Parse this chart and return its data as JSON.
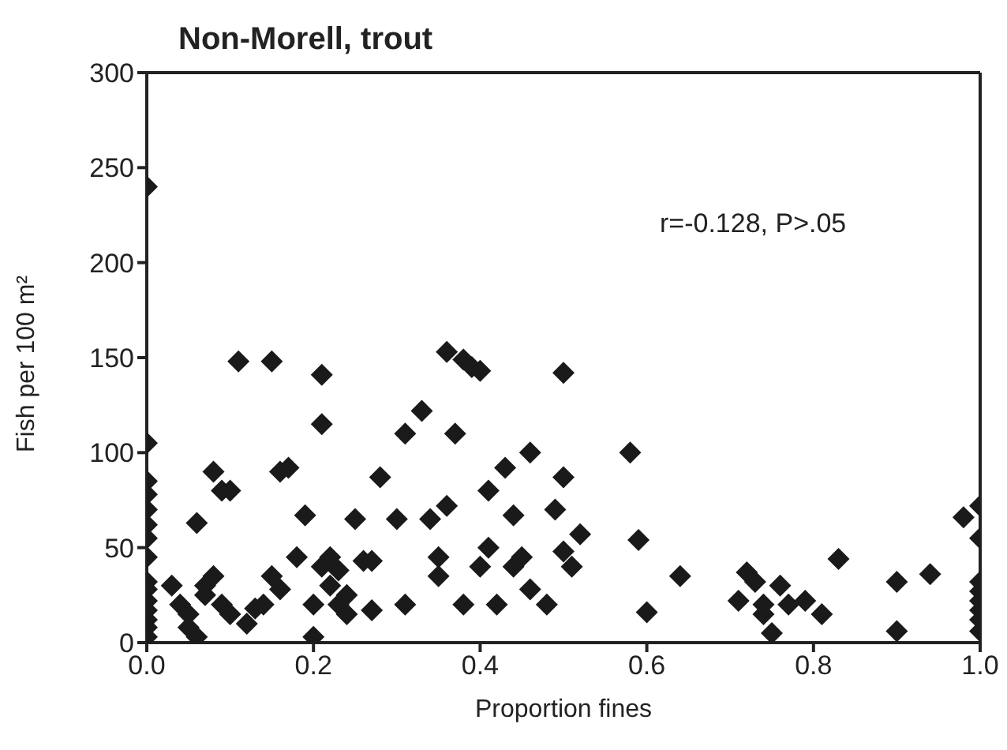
{
  "chart_data": {
    "type": "scatter",
    "title": "Non-Morell, trout",
    "xlabel": "Proportion fines",
    "ylabel": "Fish per 100 m²",
    "annotations": [
      "r=-0.128, P>.05"
    ],
    "xlim": [
      0,
      1
    ],
    "ylim": [
      0,
      300
    ],
    "xticks": [
      {
        "value": 0,
        "label": "0.0"
      },
      0.2,
      0.4,
      0.6,
      0.8,
      {
        "value": 1,
        "label": "1.0"
      }
    ],
    "yticks": [
      0,
      50,
      100,
      150,
      200,
      250,
      300
    ],
    "marker": "diamond",
    "series": [
      {
        "color": "#1a1a1a",
        "x": [
          0,
          0,
          0,
          0,
          0,
          0,
          0,
          0,
          0,
          0,
          0,
          0,
          0,
          0,
          0,
          0.03,
          0.04,
          0.05,
          0.05,
          0.06,
          0.07,
          0.06,
          0.07,
          0.08,
          0.09,
          0.08,
          0.09,
          0.1,
          0.1,
          0.11,
          0.12,
          0.13,
          0.14,
          0.15,
          0.15,
          0.16,
          0.17,
          0.16,
          0.18,
          0.19,
          0.2,
          0.2,
          0.21,
          0.21,
          0.21,
          0.22,
          0.22,
          0.23,
          0.23,
          0.24,
          0.24,
          0.25,
          0.26,
          0.27,
          0.27,
          0.28,
          0.3,
          0.31,
          0.31,
          0.33,
          0.34,
          0.35,
          0.35,
          0.36,
          0.36,
          0.37,
          0.38,
          0.38,
          0.39,
          0.4,
          0.4,
          0.41,
          0.41,
          0.42,
          0.43,
          0.44,
          0.44,
          0.45,
          0.46,
          0.46,
          0.48,
          0.49,
          0.5,
          0.5,
          0.5,
          0.51,
          0.52,
          0.58,
          0.59,
          0.6,
          0.64,
          0.71,
          0.72,
          0.73,
          0.74,
          0.74,
          0.76,
          0.75,
          0.77,
          0.79,
          0.81,
          0.83,
          0.9,
          0.9,
          0.94,
          0.98,
          1,
          1,
          1,
          1,
          1,
          1,
          1,
          1
        ],
        "values": [
          240,
          105,
          85,
          78,
          70,
          62,
          55,
          45,
          32,
          28,
          22,
          17,
          12,
          8,
          3,
          30,
          20,
          15,
          8,
          3,
          25,
          63,
          30,
          90,
          80,
          35,
          20,
          80,
          15,
          148,
          10,
          18,
          20,
          148,
          35,
          90,
          92,
          28,
          45,
          67,
          3,
          20,
          40,
          141,
          115,
          45,
          30,
          38,
          20,
          15,
          25,
          65,
          43,
          43,
          17,
          87,
          65,
          20,
          110,
          122,
          65,
          45,
          35,
          153,
          72,
          110,
          20,
          149,
          145,
          143,
          40,
          80,
          50,
          20,
          92,
          67,
          40,
          45,
          100,
          28,
          20,
          70,
          87,
          142,
          48,
          40,
          57,
          100,
          54,
          16,
          35,
          22,
          37,
          32,
          20,
          15,
          30,
          5,
          20,
          22,
          15,
          44,
          32,
          6,
          36,
          66,
          72,
          55,
          32,
          27,
          22,
          17,
          12,
          6
        ]
      }
    ]
  }
}
